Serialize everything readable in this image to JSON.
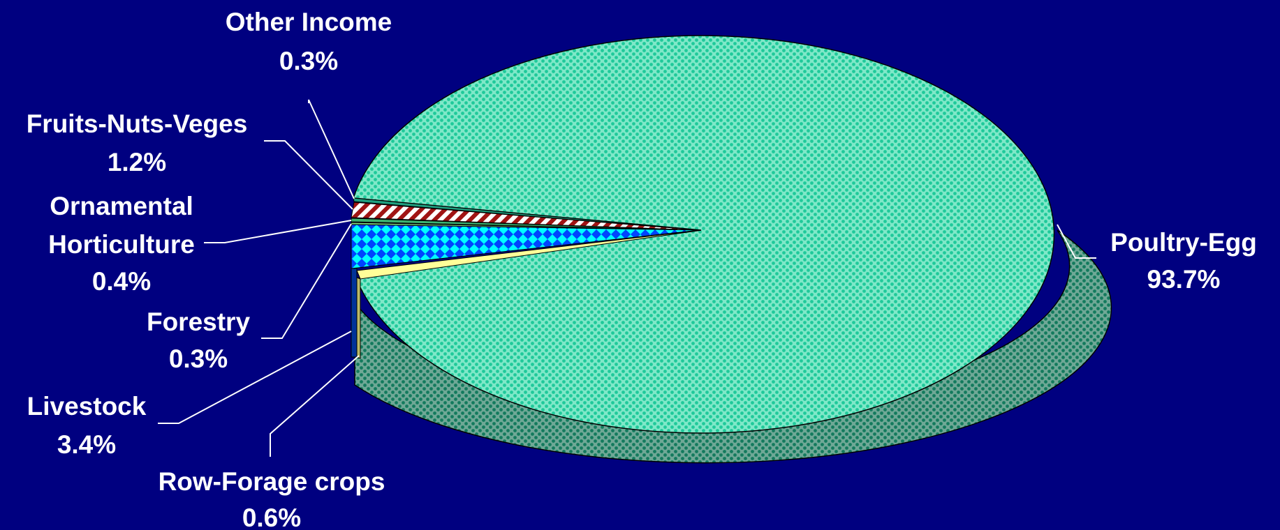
{
  "chart_data": {
    "type": "pie",
    "style": "3d-exploded-slice-pie",
    "legend": "none",
    "colors": {
      "background": "#000080",
      "poultry_egg": "#1fc99a",
      "livestock": "#00ffff",
      "fruits": "#a01414",
      "row_forage": "#ffff99",
      "forestry": "#7fd47f",
      "ornamental": "#3cb371",
      "other": "#20a080"
    },
    "slices": [
      {
        "label": "Poultry-Egg",
        "value": 93.7,
        "display": "93.7%",
        "pattern": "checker",
        "color": "#1fc99a"
      },
      {
        "label": "Row-Forage crops",
        "value": 0.6,
        "display": "0.6%",
        "pattern": "solid",
        "color": "#ffff99"
      },
      {
        "label": "Livestock",
        "value": 3.4,
        "display": "3.4%",
        "pattern": "diamond",
        "color": "#00ffff"
      },
      {
        "label": "Forestry",
        "value": 0.3,
        "display": "0.3%",
        "pattern": "solid",
        "color": "#7fd47f"
      },
      {
        "label": "Ornamental Horticulture",
        "label_lines": [
          "Ornamental",
          "Horticulture"
        ],
        "value": 0.4,
        "display": "0.4%",
        "pattern": "solid",
        "color": "#3cb371"
      },
      {
        "label": "Fruits-Nuts-Veges",
        "value": 1.2,
        "display": "1.2%",
        "pattern": "stripes",
        "color": "#a01414"
      },
      {
        "label": "Other Income",
        "value": 0.3,
        "display": "0.3%",
        "pattern": "solid",
        "color": "#20a080"
      }
    ]
  }
}
